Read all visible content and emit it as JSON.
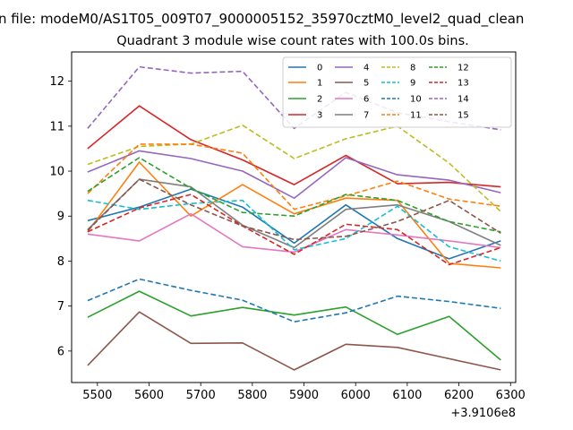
{
  "figure": {
    "suptitle": "n file: modeM0/AS1T05_009T07_9000005152_35970cztM0_level2_quad_clean",
    "title": "Quadrant 3 module wise count rates with 100.0s bins."
  },
  "chart_data": {
    "type": "line",
    "title": "Quadrant 3 module wise count rates with 100.0s bins.",
    "xlabel": "",
    "ylabel": "",
    "x_offset_label": "+3.9106e8",
    "x": [
      5481,
      5581,
      5681,
      5781,
      5881,
      5981,
      6081,
      6181,
      6281
    ],
    "xlim": [
      5450,
      6310
    ],
    "ylim": [
      5.3,
      12.65
    ],
    "xticks": [
      5500,
      5600,
      5700,
      5800,
      5900,
      6000,
      6100,
      6200,
      6300
    ],
    "yticks": [
      6,
      7,
      8,
      9,
      10,
      11,
      12
    ],
    "legend_position": "top-right",
    "grid": false,
    "series": [
      {
        "name": "0",
        "color": "#1f77b4",
        "dash": "solid",
        "values": [
          8.9,
          9.2,
          9.6,
          9.2,
          8.4,
          9.25,
          8.5,
          8.05,
          8.45
        ]
      },
      {
        "name": "1",
        "color": "#ff7f0e",
        "dash": "solid",
        "values": [
          8.65,
          10.2,
          9.0,
          9.7,
          9.05,
          9.4,
          9.35,
          7.95,
          7.85
        ]
      },
      {
        "name": "2",
        "color": "#2ca02c",
        "dash": "solid",
        "values": [
          6.75,
          7.33,
          6.78,
          6.97,
          6.8,
          6.98,
          6.37,
          6.77,
          5.8
        ]
      },
      {
        "name": "3",
        "color": "#d62728",
        "dash": "solid",
        "values": [
          10.5,
          11.45,
          10.7,
          10.25,
          9.7,
          10.35,
          9.72,
          9.75,
          9.65
        ]
      },
      {
        "name": "4",
        "color": "#9467bd",
        "dash": "solid",
        "values": [
          9.98,
          10.45,
          10.28,
          10.0,
          9.4,
          10.3,
          9.92,
          9.8,
          9.52
        ]
      },
      {
        "name": "5",
        "color": "#8c564b",
        "dash": "solid",
        "values": [
          5.68,
          6.87,
          6.17,
          6.18,
          5.58,
          6.15,
          6.08,
          5.83,
          5.58
        ]
      },
      {
        "name": "6",
        "color": "#e377c2",
        "dash": "solid",
        "values": [
          8.6,
          8.45,
          9.05,
          8.32,
          8.2,
          8.7,
          8.58,
          8.45,
          8.3
        ]
      },
      {
        "name": "7",
        "color": "#7f7f7f",
        "dash": "solid",
        "values": [
          8.7,
          9.82,
          9.65,
          8.8,
          8.3,
          9.15,
          9.25,
          8.88,
          8.35
        ]
      },
      {
        "name": "8",
        "color": "#bcbd22",
        "dash": "dashed",
        "values": [
          10.15,
          10.55,
          10.6,
          11.02,
          10.28,
          10.72,
          11.0,
          10.18,
          9.1
        ]
      },
      {
        "name": "9",
        "color": "#17becf",
        "dash": "dashed",
        "values": [
          9.35,
          9.15,
          9.28,
          9.35,
          8.25,
          8.5,
          9.22,
          8.32,
          8.0
        ]
      },
      {
        "name": "10",
        "color": "#1f77b4",
        "dash": "dashed",
        "values": [
          7.12,
          7.6,
          7.35,
          7.13,
          6.65,
          6.85,
          7.22,
          7.1,
          6.95
        ]
      },
      {
        "name": "11",
        "color": "#ff7f0e",
        "dash": "dashed",
        "values": [
          9.5,
          10.6,
          10.6,
          10.4,
          9.15,
          9.45,
          9.78,
          9.38,
          9.22
        ]
      },
      {
        "name": "12",
        "color": "#2ca02c",
        "dash": "dashed",
        "values": [
          9.55,
          10.3,
          9.62,
          9.08,
          9.0,
          9.48,
          9.35,
          8.88,
          8.65
        ]
      },
      {
        "name": "13",
        "color": "#d62728",
        "dash": "dashed",
        "values": [
          8.65,
          9.18,
          9.48,
          8.78,
          8.15,
          8.82,
          8.7,
          7.92,
          8.3
        ]
      },
      {
        "name": "14",
        "color": "#9467bd",
        "dash": "dashed",
        "values": [
          10.95,
          12.32,
          12.18,
          12.22,
          10.95,
          11.75,
          11.3,
          11.1,
          10.92
        ]
      },
      {
        "name": "15",
        "color": "#8c564b",
        "dash": "dashed",
        "values": [
          8.68,
          9.82,
          9.25,
          8.78,
          8.48,
          8.55,
          8.88,
          9.35,
          8.62
        ]
      }
    ]
  }
}
